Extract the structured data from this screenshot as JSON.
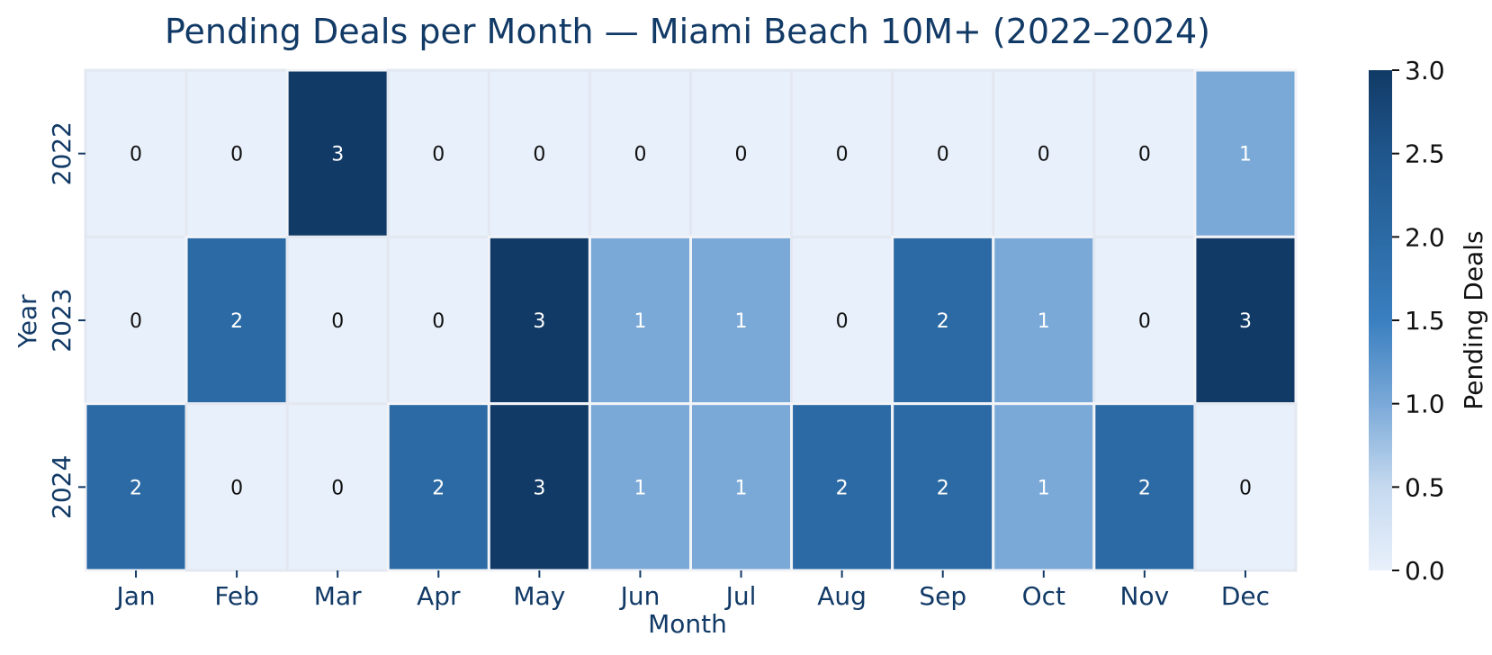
{
  "chart_data": {
    "type": "heatmap",
    "title": "Pending Deals per Month — Miami Beach 10M+ (2022–2024)",
    "xlabel": "Month",
    "ylabel": "Year",
    "x_categories": [
      "Jan",
      "Feb",
      "Mar",
      "Apr",
      "May",
      "Jun",
      "Jul",
      "Aug",
      "Sep",
      "Oct",
      "Nov",
      "Dec"
    ],
    "y_categories": [
      "2022",
      "2023",
      "2024"
    ],
    "values": [
      [
        0,
        0,
        3,
        0,
        0,
        0,
        0,
        0,
        0,
        0,
        0,
        1
      ],
      [
        0,
        2,
        0,
        0,
        3,
        1,
        1,
        0,
        2,
        1,
        0,
        3
      ],
      [
        2,
        0,
        0,
        2,
        3,
        1,
        1,
        2,
        2,
        1,
        2,
        0
      ]
    ],
    "value_range": [
      0,
      3
    ],
    "colorbar": {
      "label": "Pending Deals",
      "ticks": [
        "0.0",
        "0.5",
        "1.0",
        "1.5",
        "2.0",
        "2.5",
        "3.0"
      ],
      "colors": [
        "#e8f0fb",
        "#c5d9ef",
        "#7aa9d8",
        "#3a7fc0",
        "#2b6aa4",
        "#1f568c",
        "#113a66"
      ]
    },
    "cell_text_colors": {
      "dark": "#ffffff",
      "light": "#111111"
    },
    "grid": false
  }
}
